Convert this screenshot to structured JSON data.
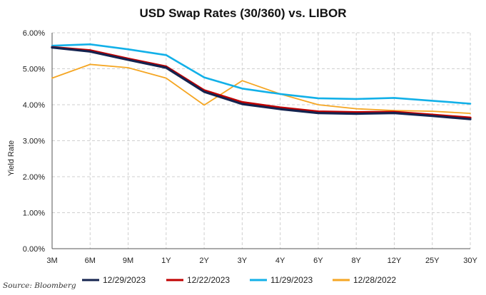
{
  "chart_data": {
    "type": "line",
    "title": "USD Swap Rates (30/360) vs. LIBOR",
    "xlabel": "",
    "ylabel": "Yield Rate",
    "ylim": [
      0,
      6
    ],
    "yticks": [
      "0.00%",
      "1.00%",
      "2.00%",
      "3.00%",
      "4.00%",
      "5.00%",
      "6.00%"
    ],
    "categories": [
      "3M",
      "6M",
      "9M",
      "1Y",
      "2Y",
      "3Y",
      "4Y",
      "6Y",
      "8Y",
      "12Y",
      "25Y",
      "30Y"
    ],
    "grid": true,
    "legend_position": "bottom",
    "series": [
      {
        "name": "12/29/2023",
        "color": "#14234f",
        "values": [
          5.59,
          5.48,
          5.25,
          5.03,
          4.36,
          4.02,
          3.88,
          3.77,
          3.75,
          3.77,
          3.69,
          3.6
        ]
      },
      {
        "name": "12/22/2023",
        "color": "#c00000",
        "values": [
          5.6,
          5.51,
          5.28,
          5.06,
          4.4,
          4.07,
          3.92,
          3.81,
          3.79,
          3.8,
          3.72,
          3.64
        ]
      },
      {
        "name": "11/29/2023",
        "color": "#12b0e8",
        "values": [
          5.64,
          5.68,
          5.54,
          5.38,
          4.76,
          4.45,
          4.3,
          4.18,
          4.16,
          4.19,
          4.11,
          4.03
        ]
      },
      {
        "name": "12/28/2022",
        "color": "#f5a623",
        "values": [
          4.74,
          5.12,
          5.03,
          4.74,
          3.99,
          4.67,
          4.3,
          4.0,
          3.89,
          3.84,
          3.82,
          3.76
        ]
      }
    ]
  },
  "source": "Source: Bloomberg"
}
